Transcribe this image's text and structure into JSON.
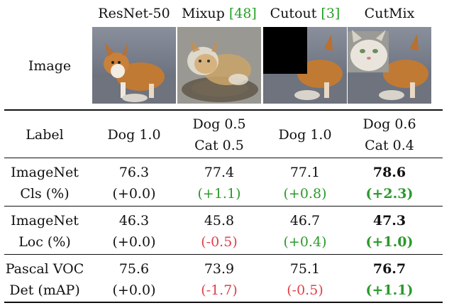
{
  "columns": [
    {
      "name": "ResNet-50",
      "cite": ""
    },
    {
      "name": "Mixup ",
      "cite": "[48]"
    },
    {
      "name": "Cutout ",
      "cite": "[3]"
    },
    {
      "name": "CutMix",
      "cite": ""
    }
  ],
  "image_row_label": "Image",
  "label_row": {
    "title": "Label",
    "values": [
      {
        "line1": "Dog 1.0",
        "line2": ""
      },
      {
        "line1": "Dog 0.5",
        "line2": "Cat 0.5"
      },
      {
        "line1": "Dog 1.0",
        "line2": ""
      },
      {
        "line1": "Dog 0.6",
        "line2": "Cat 0.4"
      }
    ]
  },
  "metric_rows": [
    {
      "title1": "ImageNet",
      "title2": "Cls (%)",
      "values": [
        "76.3",
        "77.4",
        "77.1",
        "78.6"
      ],
      "deltas": [
        "(+0.0)",
        "(+1.1)",
        "(+0.8)",
        "(+2.3)"
      ],
      "delta_kind": [
        "neutral",
        "pos",
        "pos",
        "pos"
      ],
      "best_index": 3
    },
    {
      "title1": "ImageNet",
      "title2": "Loc (%)",
      "values": [
        "46.3",
        "45.8",
        "46.7",
        "47.3"
      ],
      "deltas": [
        "(+0.0)",
        "(-0.5)",
        "(+0.4)",
        "(+1.0)"
      ],
      "delta_kind": [
        "neutral",
        "neg",
        "pos",
        "pos"
      ],
      "best_index": 3
    },
    {
      "title1": "Pascal VOC",
      "title2": "Det (mAP)",
      "values": [
        "75.6",
        "73.9",
        "75.1",
        "76.7"
      ],
      "deltas": [
        "(+0.0)",
        "(-1.7)",
        "(-0.5)",
        "(+1.1)"
      ],
      "delta_kind": [
        "neutral",
        "neg",
        "neg",
        "pos"
      ],
      "best_index": 3
    }
  ],
  "colors": {
    "positive": "#2a9a2a",
    "negative": "#e0404a",
    "citation": "#22a222"
  },
  "images": [
    "corgi-dog-photo",
    "mixup-dog-cat-blend",
    "cutout-dog-black-square",
    "cutmix-dog-cat-patch"
  ]
}
